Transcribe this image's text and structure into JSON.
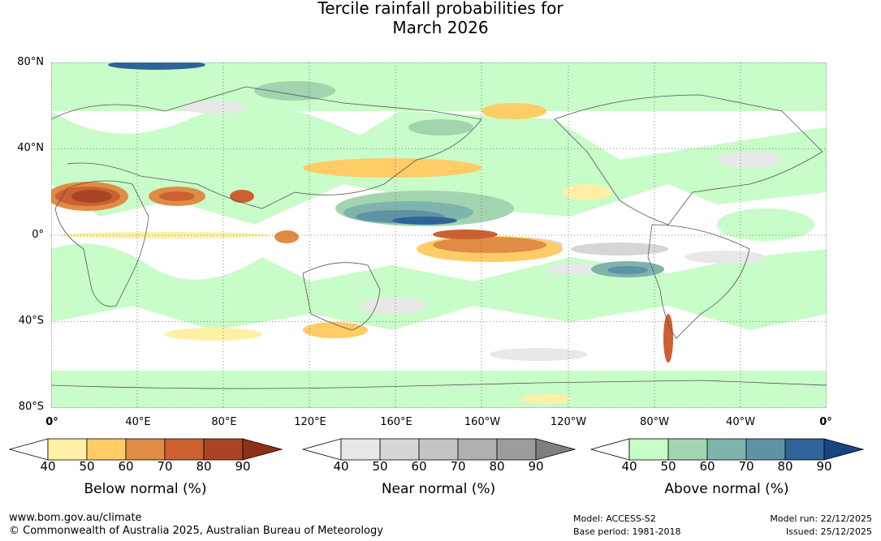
{
  "title": {
    "line1": "Tercile rainfall probabilities for",
    "line2": "March 2026"
  },
  "map": {
    "lat_labels": [
      "80°N",
      "40°N",
      "0°",
      "40°S",
      "80°S"
    ],
    "lon_labels": [
      "0°",
      "40°E",
      "80°E",
      "120°E",
      "160°E",
      "160°W",
      "120°W",
      "80°W",
      "40°W",
      "0°"
    ]
  },
  "colorbars": [
    {
      "name": "below",
      "label": "Below normal (%)",
      "ticks": [
        "40",
        "50",
        "60",
        "70",
        "80",
        "90"
      ],
      "colors": [
        "#ffffff",
        "#fff0a6",
        "#ffcc66",
        "#e08c45",
        "#cc6030",
        "#a84525",
        "#8c3018"
      ]
    },
    {
      "name": "near",
      "label": "Near normal (%)",
      "ticks": [
        "40",
        "50",
        "60",
        "70",
        "80",
        "90"
      ],
      "colors": [
        "#ffffff",
        "#e8e8e8",
        "#d6d6d6",
        "#c4c4c4",
        "#b0b0b0",
        "#9c9c9c",
        "#7f7f7f"
      ]
    },
    {
      "name": "above",
      "label": "Above normal (%)",
      "ticks": [
        "40",
        "50",
        "60",
        "70",
        "80",
        "90"
      ],
      "colors": [
        "#ffffff",
        "#c8fcc8",
        "#a2d4b0",
        "#7fb4ac",
        "#5f92a4",
        "#2f6498",
        "#18457f"
      ]
    }
  ],
  "footer": {
    "url": "www.bom.gov.au/climate",
    "copyright": "© Commonwealth of Australia 2025, Australian Bureau of Meteorology",
    "model": "Model: ACCESS-S2",
    "base_period": "Base period: 1981-2018",
    "model_run": "Model run: 22/12/2025",
    "issued": "Issued: 25/12/2025"
  }
}
